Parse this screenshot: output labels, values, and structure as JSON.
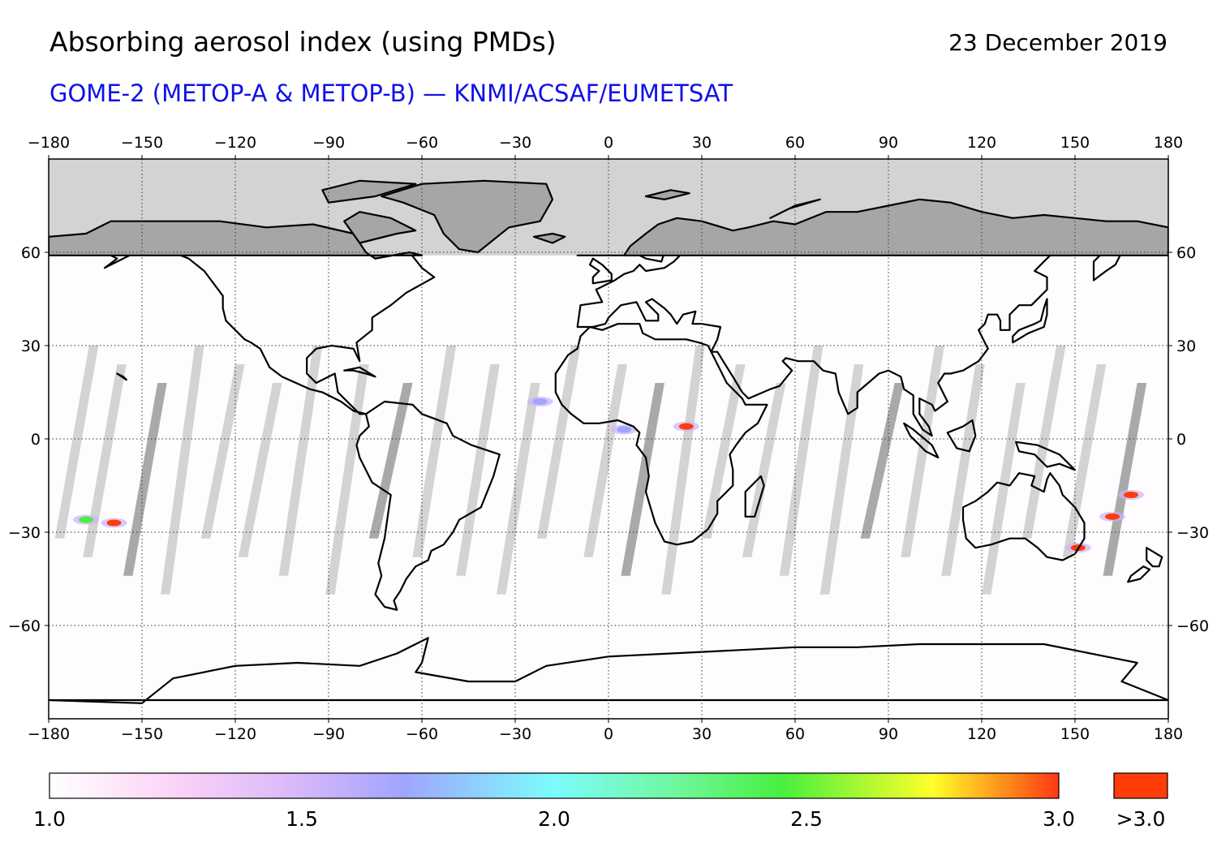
{
  "header": {
    "title": "Absorbing aerosol index (using PMDs)",
    "date": "23 December 2019",
    "subtitle": "GOME-2 (METOP-A & METOP-B) — KNMI/ACSAF/EUMETSAT"
  },
  "map": {
    "projection": "equirectangular",
    "lon_range": [
      -180,
      180
    ],
    "lat_range": [
      -90,
      90
    ],
    "lon_ticks": [
      -180,
      -150,
      -120,
      -90,
      -60,
      -30,
      0,
      30,
      60,
      90,
      120,
      150,
      180
    ],
    "lat_ticks": [
      60,
      30,
      0,
      -30,
      -60
    ],
    "lon_tick_labels": [
      "−180",
      "−150",
      "−120",
      "−90",
      "−60",
      "−30",
      "0",
      "30",
      "60",
      "90",
      "120",
      "150",
      "180"
    ],
    "lat_tick_labels": [
      "60",
      "30",
      "0",
      "−30",
      "−60"
    ],
    "grid": "dotted",
    "no_data_color": "#d3d3d3",
    "polar_land_color": "#a6a6a6",
    "coastline_color": "#000000",
    "aerosol_hotspots": [
      {
        "region": "south-pacific-east-of-australia",
        "lon": 162,
        "lat": -25,
        "value": 3.0
      },
      {
        "region": "tasman-sea",
        "lon": 168,
        "lat": -18,
        "value": 3.0
      },
      {
        "region": "south-east-australia",
        "lon": 151,
        "lat": -35,
        "value": 3.0
      },
      {
        "region": "south-pacific-west",
        "lon": -168,
        "lat": -26,
        "value": 2.6
      },
      {
        "region": "south-pacific-center",
        "lon": -159,
        "lat": -27,
        "value": 3.0
      },
      {
        "region": "west-africa-coast",
        "lon": -22,
        "lat": 12,
        "value": 1.9
      },
      {
        "region": "gulf-of-guinea",
        "lon": 5,
        "lat": 3,
        "value": 1.7
      },
      {
        "region": "central-africa",
        "lon": 25,
        "lat": 4,
        "value": 3.0
      }
    ]
  },
  "colorbar": {
    "min": 1.0,
    "max": 3.0,
    "labels": [
      "1.0",
      "1.5",
      "2.0",
      "2.5",
      "3.0"
    ],
    "label_values": [
      1.0,
      1.5,
      2.0,
      2.5,
      3.0
    ],
    "overflow_label": ">3.0",
    "overflow_color": "#ff3c0a",
    "stops": [
      {
        "value": 1.0,
        "color": "#ffffff"
      },
      {
        "value": 1.25,
        "color": "#fbd3f6"
      },
      {
        "value": 1.5,
        "color": "#d7b7fb"
      },
      {
        "value": 1.7,
        "color": "#a0a4fe"
      },
      {
        "value": 2.0,
        "color": "#7cfdfd"
      },
      {
        "value": 2.25,
        "color": "#6ff79a"
      },
      {
        "value": 2.45,
        "color": "#47ef3f"
      },
      {
        "value": 2.75,
        "color": "#ffff2a"
      },
      {
        "value": 3.0,
        "color": "#ff3812"
      }
    ]
  }
}
